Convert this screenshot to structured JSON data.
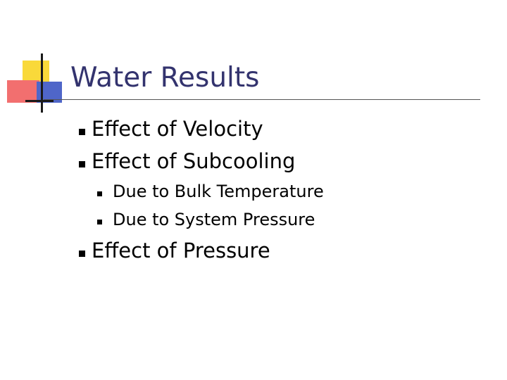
{
  "slide": {
    "title": "Water Results",
    "items": [
      {
        "label": "Effect of Velocity",
        "level": 1
      },
      {
        "label": "Effect of Subcooling",
        "level": 1
      },
      {
        "label": "Due to Bulk Temperature",
        "level": 2
      },
      {
        "label": "Due to System Pressure",
        "level": 2
      },
      {
        "label": "Effect of Pressure",
        "level": 1
      }
    ]
  },
  "colors": {
    "title": "#33336e",
    "logo_yellow": "#f9d93a",
    "logo_red": "#f26f6f",
    "logo_blue": "#4f66c9"
  }
}
